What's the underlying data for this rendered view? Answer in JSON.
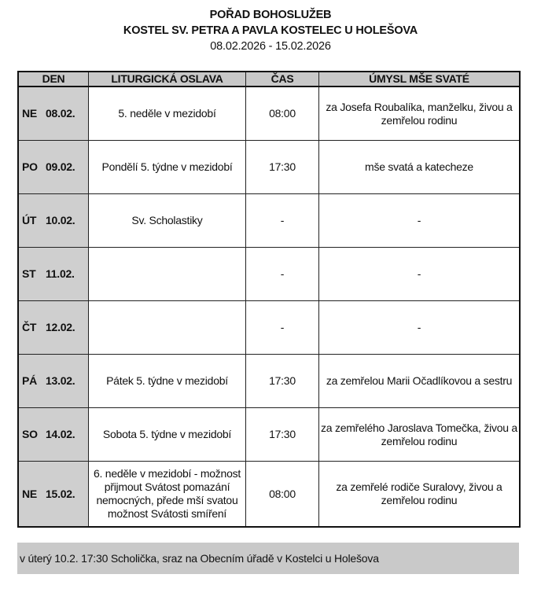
{
  "header": {
    "title": "POŘAD BOHOSLUŽEB",
    "subtitle": "KOSTEL SV. PETRA A PAVLA KOSTELEC U HOLEŠOVA",
    "date_range": "08.02.2026 - 15.02.2026"
  },
  "table": {
    "columns": [
      "DEN",
      "LITURGICKÁ OSLAVA",
      "ČAS",
      "ÚMYSL MŠE SVATÉ"
    ],
    "rows": [
      {
        "day": "NE",
        "date": "08.02.",
        "celebration": "5. neděle v mezidobí",
        "time": "08:00",
        "intention": "za Josefa Roubalíka, manželku, živou a zemřelou rodinu"
      },
      {
        "day": "PO",
        "date": "09.02.",
        "celebration": "Pondělí 5. týdne v mezidobí",
        "time": "17:30",
        "intention": "mše svatá a katecheze"
      },
      {
        "day": "ÚT",
        "date": "10.02.",
        "celebration": "Sv. Scholastiky",
        "time": "-",
        "intention": "-"
      },
      {
        "day": "ST",
        "date": "11.02.",
        "celebration": "",
        "time": "-",
        "intention": "-"
      },
      {
        "day": "ČT",
        "date": "12.02.",
        "celebration": "",
        "time": "-",
        "intention": "-"
      },
      {
        "day": "PÁ",
        "date": "13.02.",
        "celebration": "Pátek 5. týdne v mezidobí",
        "time": "17:30",
        "intention": "za zemřelou Marii Očadlíkovou a sestru"
      },
      {
        "day": "SO",
        "date": "14.02.",
        "celebration": "Sobota 5. týdne v mezidobí",
        "time": "17:30",
        "intention": "za zemřelého Jaroslava Tomečka, živou a zemřelou rodinu"
      },
      {
        "day": "NE",
        "date": "15.02.",
        "celebration": "6. neděle v mezidobí - možnost přijmout Svátost pomazání nemocných, přede mší svatou možnost Svátosti smíření",
        "time": "08:00",
        "intention": "za zemřelé rodiče Suralovy, živou a zemřelou rodinu"
      }
    ]
  },
  "note": "v úterý 10.2. 17:30 Scholička, sraz na Obecním úřadě v Kostelci u Holešova"
}
